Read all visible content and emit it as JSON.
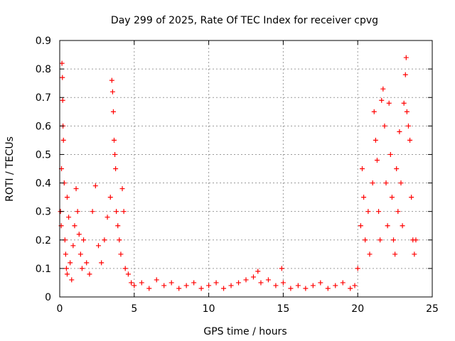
{
  "chart_data": {
    "type": "scatter",
    "title": "Day 299 of 2025, Rate Of TEC Index for receiver cpvg",
    "xlabel": "GPS time / hours",
    "ylabel": "ROTI / TECUs",
    "xlim": [
      0,
      25
    ],
    "ylim": [
      0,
      0.9
    ],
    "xticks": [
      0,
      5,
      10,
      15,
      20,
      25
    ],
    "yticks": [
      0,
      0.1,
      0.2,
      0.3,
      0.4,
      0.5,
      0.6,
      0.7,
      0.8,
      0.9
    ],
    "xtick_labels": [
      "0",
      "5",
      "10",
      "15",
      "20",
      "25"
    ],
    "ytick_labels": [
      "0",
      "0.1",
      "0.2",
      "0.3",
      "0.4",
      "0.5",
      "0.6",
      "0.7",
      "0.8",
      "0.9"
    ],
    "grid": true,
    "marker": "plus",
    "color": "#ff0000",
    "series": [
      {
        "points": [
          [
            0.05,
            0.3
          ],
          [
            0.1,
            0.25
          ],
          [
            0.12,
            0.45
          ],
          [
            0.15,
            0.82
          ],
          [
            0.18,
            0.77
          ],
          [
            0.2,
            0.69
          ],
          [
            0.22,
            0.6
          ],
          [
            0.25,
            0.55
          ],
          [
            0.3,
            0.4
          ],
          [
            0.35,
            0.2
          ],
          [
            0.4,
            0.15
          ],
          [
            0.45,
            0.1
          ],
          [
            0.5,
            0.08
          ],
          [
            0.5,
            0.35
          ],
          [
            0.6,
            0.28
          ],
          [
            0.7,
            0.12
          ],
          [
            0.8,
            0.06
          ],
          [
            0.9,
            0.18
          ],
          [
            1.0,
            0.25
          ],
          [
            1.1,
            0.38
          ],
          [
            1.2,
            0.3
          ],
          [
            1.3,
            0.22
          ],
          [
            1.4,
            0.15
          ],
          [
            1.5,
            0.1
          ],
          [
            1.6,
            0.2
          ],
          [
            1.8,
            0.12
          ],
          [
            2.0,
            0.08
          ],
          [
            2.2,
            0.3
          ],
          [
            2.4,
            0.39
          ],
          [
            2.6,
            0.18
          ],
          [
            2.8,
            0.12
          ],
          [
            3.0,
            0.2
          ],
          [
            3.2,
            0.28
          ],
          [
            3.4,
            0.35
          ],
          [
            3.5,
            0.76
          ],
          [
            3.55,
            0.72
          ],
          [
            3.6,
            0.65
          ],
          [
            3.65,
            0.55
          ],
          [
            3.7,
            0.5
          ],
          [
            3.75,
            0.45
          ],
          [
            3.8,
            0.3
          ],
          [
            3.9,
            0.25
          ],
          [
            4.0,
            0.2
          ],
          [
            4.1,
            0.15
          ],
          [
            4.2,
            0.38
          ],
          [
            4.3,
            0.3
          ],
          [
            4.4,
            0.1
          ],
          [
            4.6,
            0.08
          ],
          [
            4.8,
            0.05
          ],
          [
            5.0,
            0.04
          ],
          [
            5.5,
            0.05
          ],
          [
            6.0,
            0.03
          ],
          [
            6.5,
            0.06
          ],
          [
            7.0,
            0.04
          ],
          [
            7.5,
            0.05
          ],
          [
            8.0,
            0.03
          ],
          [
            8.5,
            0.04
          ],
          [
            9.0,
            0.05
          ],
          [
            9.5,
            0.03
          ],
          [
            10.0,
            0.04
          ],
          [
            10.5,
            0.05
          ],
          [
            11.0,
            0.03
          ],
          [
            11.5,
            0.04
          ],
          [
            12.0,
            0.05
          ],
          [
            12.5,
            0.06
          ],
          [
            13.0,
            0.07
          ],
          [
            13.3,
            0.09
          ],
          [
            13.5,
            0.05
          ],
          [
            14.0,
            0.06
          ],
          [
            14.5,
            0.04
          ],
          [
            14.9,
            0.1
          ],
          [
            15.0,
            0.05
          ],
          [
            15.5,
            0.03
          ],
          [
            16.0,
            0.04
          ],
          [
            16.5,
            0.03
          ],
          [
            17.0,
            0.04
          ],
          [
            17.5,
            0.05
          ],
          [
            18.0,
            0.03
          ],
          [
            18.5,
            0.04
          ],
          [
            19.0,
            0.05
          ],
          [
            19.5,
            0.03
          ],
          [
            19.8,
            0.04
          ],
          [
            20.0,
            0.1
          ],
          [
            20.2,
            0.25
          ],
          [
            20.3,
            0.45
          ],
          [
            20.4,
            0.35
          ],
          [
            20.5,
            0.2
          ],
          [
            20.7,
            0.3
          ],
          [
            20.8,
            0.15
          ],
          [
            21.0,
            0.4
          ],
          [
            21.1,
            0.65
          ],
          [
            21.2,
            0.55
          ],
          [
            21.3,
            0.48
          ],
          [
            21.4,
            0.3
          ],
          [
            21.5,
            0.2
          ],
          [
            21.6,
            0.69
          ],
          [
            21.7,
            0.73
          ],
          [
            21.8,
            0.6
          ],
          [
            21.9,
            0.4
          ],
          [
            22.0,
            0.25
          ],
          [
            22.1,
            0.68
          ],
          [
            22.2,
            0.5
          ],
          [
            22.3,
            0.35
          ],
          [
            22.4,
            0.2
          ],
          [
            22.5,
            0.15
          ],
          [
            22.6,
            0.45
          ],
          [
            22.7,
            0.3
          ],
          [
            22.8,
            0.58
          ],
          [
            22.9,
            0.4
          ],
          [
            23.0,
            0.25
          ],
          [
            23.1,
            0.68
          ],
          [
            23.2,
            0.78
          ],
          [
            23.25,
            0.84
          ],
          [
            23.3,
            0.65
          ],
          [
            23.4,
            0.6
          ],
          [
            23.5,
            0.55
          ],
          [
            23.6,
            0.35
          ],
          [
            23.7,
            0.2
          ],
          [
            23.8,
            0.15
          ],
          [
            23.9,
            0.2
          ]
        ]
      }
    ]
  }
}
